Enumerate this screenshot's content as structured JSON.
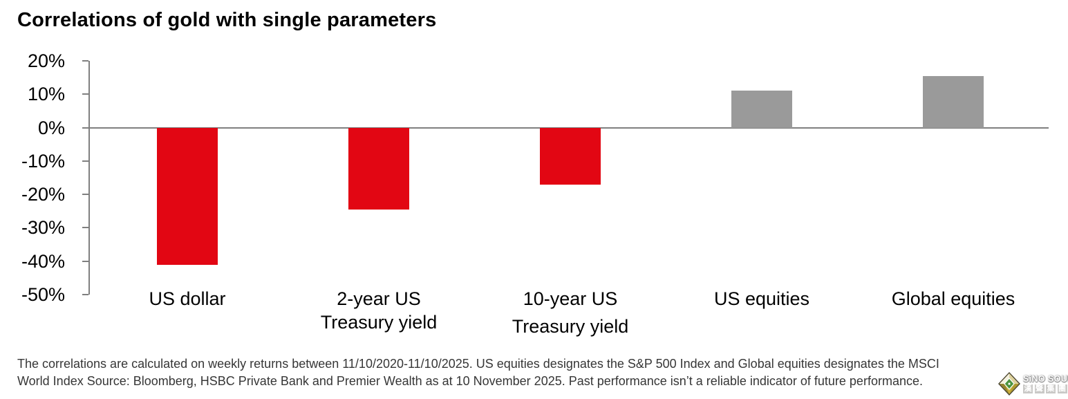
{
  "title": "Correlations of gold with single parameters",
  "chart_data": {
    "type": "bar",
    "title": "Correlations of gold with single parameters",
    "categories": [
      "US dollar",
      "2-year US Treasury yield",
      "10-year US Treasury yield",
      "US equities",
      "Global equities"
    ],
    "category_lines": [
      [
        "US dollar"
      ],
      [
        "2-year US",
        "Treasury yield"
      ],
      [
        "10-year US",
        "Treasury yield"
      ],
      [
        "US equities"
      ],
      [
        "Global equities"
      ]
    ],
    "values": [
      -41,
      -24.5,
      -17,
      11,
      15.5
    ],
    "unit": "%",
    "series_name": "Correlation of gold (weekly returns, 11/10/2020-11/10/2025)",
    "y_ticks": [
      "20%",
      "10%",
      "0%",
      "-10%",
      "-20%",
      "-30%",
      "-40%",
      "-50%"
    ],
    "y_tick_values": [
      20,
      10,
      0,
      -10,
      -20,
      -30,
      -40,
      -50
    ],
    "ylim": [
      -50,
      20
    ],
    "bar_colors": [
      "#e20613",
      "#e20613",
      "#e20613",
      "#9a9a9a",
      "#9a9a9a"
    ],
    "negative_color": "#e20613",
    "positive_color": "#9a9a9a",
    "axis_color": "#7f7f7f",
    "grid": false,
    "legend": null,
    "xlabel": "",
    "ylabel": ""
  },
  "footnote": {
    "lines": [
      "The correlations are calculated on weekly returns between 11/10/2020-11/10/2025. US equities designates the S&P 500 Index and Global equities designates the MSCI",
      "World Index Source: Bloomberg, HSBC Private Bank and Premier Wealth as at 10 November 2025. Past performance isn’t a reliable indicator of future performance."
    ]
  },
  "watermark": {
    "brand": "SiNO SOUND",
    "brand_cn": "漢聲集團",
    "icon": "diamond-gem-icon"
  }
}
